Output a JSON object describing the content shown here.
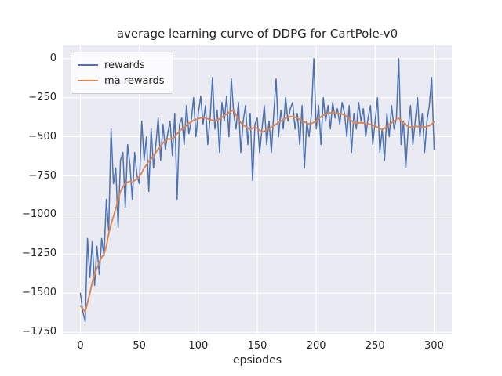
{
  "figure": {
    "title": "average learning curve of DDPG for CartPole-v0",
    "xlabel": "epsiodes"
  },
  "legend": {
    "entries": [
      {
        "label": "rewards",
        "color": "#4c72b0"
      },
      {
        "label": "ma rewards",
        "color": "#dd8452"
      }
    ]
  },
  "chart_data": {
    "type": "line",
    "title": "average learning curve of DDPG for CartPole-v0",
    "xlabel": "epsiodes",
    "ylabel": "",
    "grid": true,
    "legend_position": "upper left",
    "xlim": [
      -15,
      315
    ],
    "ylim": [
      -1764,
      84
    ],
    "xticks": [
      0,
      50,
      100,
      150,
      200,
      250,
      300
    ],
    "yticks": [
      0,
      -250,
      -500,
      -750,
      -1000,
      -1250,
      -1500,
      -1750
    ],
    "colors": {
      "axes_background": "#eaeaf2",
      "grid": "#ffffff",
      "text": "#262626"
    },
    "x": [
      0,
      2,
      4,
      6,
      8,
      10,
      12,
      14,
      16,
      18,
      20,
      22,
      24,
      26,
      28,
      30,
      32,
      34,
      36,
      38,
      40,
      42,
      44,
      46,
      48,
      50,
      52,
      54,
      56,
      58,
      60,
      62,
      64,
      66,
      68,
      70,
      72,
      74,
      76,
      78,
      80,
      82,
      84,
      86,
      88,
      90,
      92,
      94,
      96,
      98,
      100,
      102,
      104,
      106,
      108,
      110,
      112,
      114,
      116,
      118,
      120,
      122,
      124,
      126,
      128,
      130,
      132,
      134,
      136,
      138,
      140,
      142,
      144,
      146,
      148,
      150,
      152,
      154,
      156,
      158,
      160,
      162,
      164,
      166,
      168,
      170,
      172,
      174,
      176,
      178,
      180,
      182,
      184,
      186,
      188,
      190,
      192,
      194,
      196,
      198,
      200,
      202,
      204,
      206,
      208,
      210,
      212,
      214,
      216,
      218,
      220,
      222,
      224,
      226,
      228,
      230,
      232,
      234,
      236,
      238,
      240,
      242,
      244,
      246,
      248,
      250,
      252,
      254,
      256,
      258,
      260,
      262,
      264,
      266,
      268,
      270,
      272,
      274,
      276,
      278,
      280,
      282,
      284,
      286,
      288,
      290,
      292,
      294,
      296,
      298,
      300
    ],
    "series": [
      {
        "name": "rewards",
        "color": "#4c72b0",
        "values": [
          -1500,
          -1620,
          -1680,
          -1150,
          -1400,
          -1170,
          -1450,
          -1200,
          -1380,
          -1150,
          -1260,
          -900,
          -1100,
          -450,
          -800,
          -700,
          -1080,
          -650,
          -600,
          -950,
          -550,
          -680,
          -900,
          -600,
          -750,
          -800,
          -400,
          -650,
          -500,
          -850,
          -450,
          -700,
          -550,
          -380,
          -650,
          -420,
          -580,
          -480,
          -400,
          -620,
          -350,
          -900,
          -420,
          -380,
          -550,
          -300,
          -480,
          -400,
          -250,
          -500,
          -350,
          -240,
          -420,
          -300,
          -550,
          -380,
          -120,
          -450,
          -330,
          -600,
          -280,
          -400,
          -240,
          -500,
          -130,
          -350,
          -450,
          -280,
          -600,
          -400,
          -300,
          -550,
          -350,
          -780,
          -420,
          -380,
          -600,
          -450,
          -300,
          -550,
          -400,
          -600,
          -350,
          -130,
          -500,
          -330,
          -450,
          -250,
          -400,
          -320,
          -280,
          -450,
          -350,
          -550,
          -300,
          -700,
          -400,
          -500,
          -350,
          0,
          -450,
          -300,
          -550,
          -250,
          -400,
          -300,
          -450,
          -280,
          -380,
          -320,
          -420,
          -280,
          -350,
          -500,
          -300,
          -600,
          -350,
          -450,
          -280,
          -400,
          -320,
          -500,
          -380,
          -300,
          -550,
          -400,
          -250,
          -600,
          -450,
          -650,
          -350,
          -500,
          -300,
          -450,
          -380,
          0,
          -550,
          -400,
          -700,
          -450,
          -300,
          -550,
          -400,
          -250,
          -500,
          -350,
          -600,
          -400,
          -300,
          -120,
          -580
        ]
      },
      {
        "name": "ma rewards",
        "color": "#dd8452",
        "values": [
          -1580,
          -1600,
          -1620,
          -1560,
          -1500,
          -1430,
          -1380,
          -1340,
          -1300,
          -1270,
          -1250,
          -1200,
          -1120,
          -1060,
          -1010,
          -960,
          -900,
          -850,
          -820,
          -800,
          -790,
          -785,
          -790,
          -780,
          -770,
          -755,
          -730,
          -700,
          -680,
          -655,
          -640,
          -620,
          -600,
          -580,
          -560,
          -540,
          -525,
          -515,
          -515,
          -510,
          -500,
          -480,
          -465,
          -450,
          -440,
          -430,
          -415,
          -405,
          -395,
          -390,
          -385,
          -380,
          -378,
          -380,
          -385,
          -390,
          -395,
          -400,
          -395,
          -385,
          -375,
          -365,
          -355,
          -345,
          -335,
          -330,
          -360,
          -390,
          -410,
          -425,
          -435,
          -445,
          -450,
          -445,
          -440,
          -445,
          -460,
          -470,
          -465,
          -455,
          -450,
          -440,
          -430,
          -420,
          -410,
          -400,
          -390,
          -382,
          -375,
          -372,
          -370,
          -375,
          -380,
          -390,
          -398,
          -405,
          -412,
          -418,
          -415,
          -408,
          -400,
          -385,
          -372,
          -362,
          -355,
          -350,
          -347,
          -345,
          -347,
          -350,
          -352,
          -355,
          -360,
          -370,
          -385,
          -398,
          -408,
          -415,
          -412,
          -410,
          -412,
          -415,
          -418,
          -422,
          -428,
          -432,
          -440,
          -448,
          -452,
          -445,
          -435,
          -422,
          -410,
          -398,
          -388,
          -382,
          -395,
          -412,
          -425,
          -435,
          -440,
          -438,
          -433,
          -435,
          -438,
          -440,
          -438,
          -434,
          -430,
          -418,
          -405
        ]
      }
    ]
  }
}
